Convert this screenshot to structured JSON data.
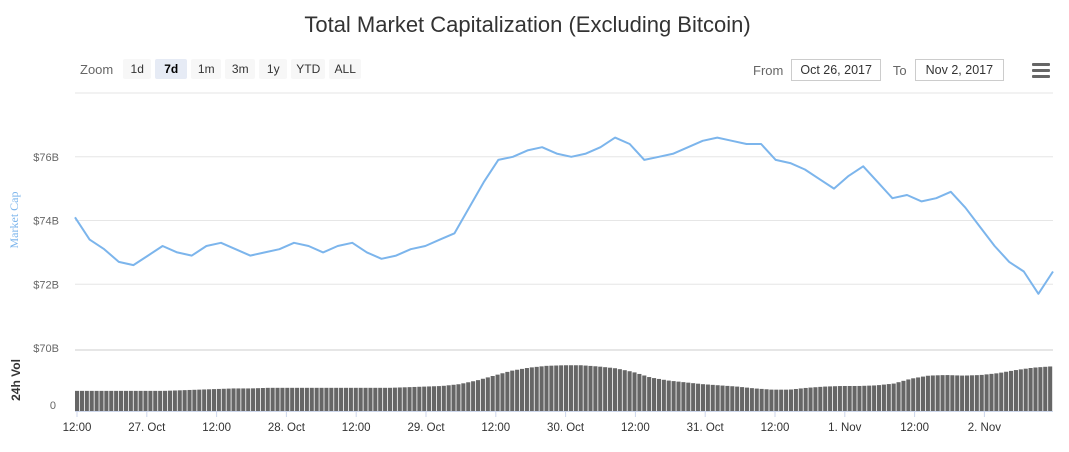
{
  "title": "Total Market Capitalization (Excluding Bitcoin)",
  "zoom": {
    "label": "Zoom",
    "buttons": [
      "1d",
      "7d",
      "1m",
      "3m",
      "1y",
      "YTD",
      "ALL"
    ],
    "active": "7d"
  },
  "range": {
    "from_label": "From",
    "from_value": "Oct 26, 2017",
    "to_label": "To",
    "to_value": "Nov 2, 2017"
  },
  "menu_icon": "hamburger-menu-icon",
  "colors": {
    "line": "#7cb5ec",
    "volume": "#666666",
    "grid": "#e6e6e6",
    "axis_text": "#666666",
    "ylabel_text": "#7cb5ec"
  },
  "chart_data": [
    {
      "type": "line",
      "title": "Total Market Capitalization (Excluding Bitcoin)",
      "ylabel": "Market Cap",
      "y_ticks": [
        "$70B",
        "$72B",
        "$74B",
        "$76B"
      ],
      "ylim": [
        70,
        78
      ],
      "x_ticks": [
        "12:00",
        "27. Oct",
        "12:00",
        "28. Oct",
        "12:00",
        "29. Oct",
        "12:00",
        "30. Oct",
        "12:00",
        "31. Oct",
        "12:00",
        "1. Nov",
        "12:00",
        "2. Nov"
      ],
      "grid": true,
      "series": [
        {
          "values": [
            74.1,
            73.4,
            73.1,
            72.7,
            72.6,
            72.9,
            73.2,
            73.0,
            72.9,
            73.2,
            73.3,
            73.1,
            72.9,
            73.0,
            73.1,
            73.3,
            73.2,
            73.0,
            73.2,
            73.3,
            73.0,
            72.8,
            72.9,
            73.1,
            73.2,
            73.4,
            73.6,
            74.4,
            75.2,
            75.9,
            76.0,
            76.2,
            76.3,
            76.1,
            76.0,
            76.1,
            76.3,
            76.6,
            76.4,
            75.9,
            76.0,
            76.1,
            76.3,
            76.5,
            76.6,
            76.5,
            76.4,
            76.4,
            75.9,
            75.8,
            75.6,
            75.3,
            75.0,
            75.4,
            75.7,
            75.2,
            74.7,
            74.8,
            74.6,
            74.7,
            74.9,
            74.4,
            73.8,
            73.2,
            72.7,
            72.4,
            71.7,
            72.4
          ]
        }
      ]
    },
    {
      "type": "bar",
      "ylabel": "24h Vol",
      "y_ticks": [
        "0"
      ],
      "series": [
        {
          "name": "24h Vol",
          "values": [
            0.33,
            0.33,
            0.33,
            0.33,
            0.33,
            0.33,
            0.34,
            0.35,
            0.36,
            0.37,
            0.37,
            0.38,
            0.38,
            0.38,
            0.38,
            0.38,
            0.38,
            0.38,
            0.38,
            0.39,
            0.4,
            0.41,
            0.44,
            0.5,
            0.58,
            0.66,
            0.71,
            0.74,
            0.75,
            0.75,
            0.73,
            0.7,
            0.64,
            0.55,
            0.5,
            0.47,
            0.44,
            0.42,
            0.4,
            0.37,
            0.35,
            0.35,
            0.38,
            0.4,
            0.41,
            0.41,
            0.42,
            0.45,
            0.53,
            0.58,
            0.59,
            0.58,
            0.59,
            0.62,
            0.67,
            0.71,
            0.73
          ]
        }
      ]
    }
  ]
}
